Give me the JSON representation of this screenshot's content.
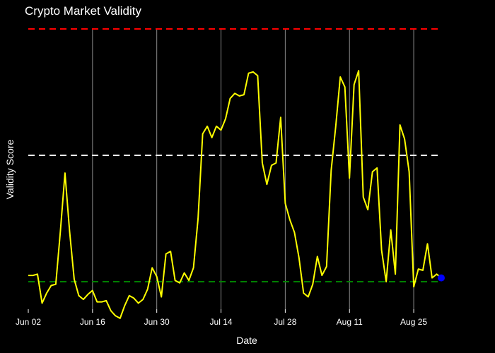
{
  "chart_data": {
    "type": "line",
    "title": "Crypto Market Validity",
    "xlabel": "Date",
    "ylabel": "Validity Score",
    "x_ticks": [
      "Jun 02",
      "Jun 16",
      "Jun 30",
      "Jul 14",
      "Jul 28",
      "Aug 11",
      "Aug 25"
    ],
    "grid": {
      "x": true,
      "y": false
    },
    "series": [
      {
        "color": "#ffff00",
        "start_date": "2024-06-02",
        "values": [
          0.05,
          0.05,
          0.06,
          -0.17,
          -0.09,
          -0.03,
          -0.02,
          0.4,
          0.86,
          0.4,
          0.02,
          -0.11,
          -0.14,
          -0.1,
          -0.07,
          -0.16,
          -0.16,
          -0.15,
          -0.23,
          -0.27,
          -0.29,
          -0.19,
          -0.11,
          -0.13,
          -0.17,
          -0.14,
          -0.06,
          0.11,
          0.04,
          -0.12,
          0.22,
          0.24,
          0.01,
          -0.01,
          0.07,
          0.01,
          0.11,
          0.5,
          1.17,
          1.23,
          1.14,
          1.23,
          1.2,
          1.29,
          1.45,
          1.49,
          1.47,
          1.48,
          1.65,
          1.66,
          1.63,
          0.94,
          0.77,
          0.92,
          0.94,
          1.3,
          0.62,
          0.49,
          0.39,
          0.19,
          -0.09,
          -0.12,
          -0.02,
          0.2,
          0.05,
          0.12,
          0.88,
          1.23,
          1.62,
          1.54,
          0.82,
          1.56,
          1.67,
          0.67,
          0.57,
          0.87,
          0.9,
          0.25,
          0.0,
          0.41,
          0.06,
          1.24,
          1.13,
          0.87,
          -0.04,
          0.1,
          0.09,
          0.3,
          0.03,
          0.06,
          0.03
        ],
        "marker_last": {
          "color": "#0000ff"
        }
      }
    ],
    "reference_lines": [
      {
        "y": 2.0,
        "color": "#ff0000",
        "dash": "dashed"
      },
      {
        "y": 1.0,
        "color": "#ffffff",
        "dash": "dashed"
      },
      {
        "y": 0.0,
        "color": "#008000",
        "dash": "dashed"
      }
    ],
    "ylim": [
      -0.22,
      2.0
    ],
    "y_visible_min": -0.35
  }
}
